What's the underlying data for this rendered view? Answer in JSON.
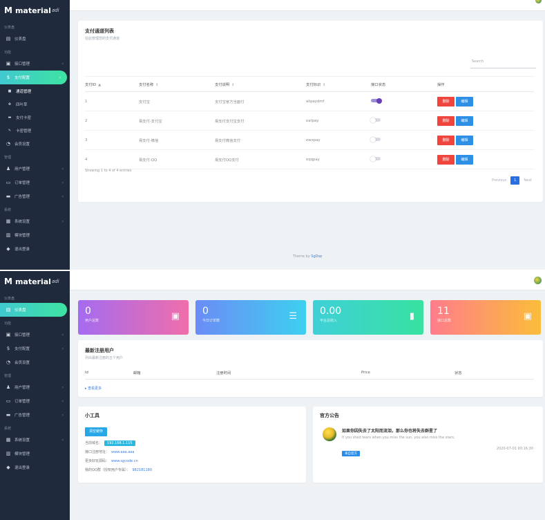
{
  "top": {
    "brand": "material",
    "brand_sub": "adi",
    "sidebar": {
      "sections": [
        {
          "label": "仪表盘",
          "items": [
            {
              "label": "仪表盘",
              "icon": "dashboard-icon"
            }
          ]
        },
        {
          "label": "功能",
          "items": [
            {
              "label": "接口管理",
              "icon": "api-icon",
              "chevron": true
            },
            {
              "label": "支付配置",
              "icon": "dollar-icon",
              "chevron": true,
              "active": true
            },
            {
              "label": "通道管理",
              "icon": "dot-icon",
              "sub": true,
              "bold": true
            },
            {
              "label": "四叶草",
              "icon": "clover-icon",
              "sub": true
            },
            {
              "label": "支付卡密",
              "icon": "card-icon",
              "sub": true
            },
            {
              "label": "卡密管理",
              "icon": "key-icon",
              "sub": true
            },
            {
              "label": "会员设置",
              "icon": "gauge-icon"
            }
          ]
        },
        {
          "label": "管理",
          "items": [
            {
              "label": "用户管理",
              "icon": "users-icon",
              "chevron": true
            },
            {
              "label": "订单管理",
              "icon": "order-icon",
              "chevron": true
            },
            {
              "label": "广告管理",
              "icon": "ad-icon",
              "chevron": true
            }
          ]
        },
        {
          "label": "系统",
          "items": [
            {
              "label": "系统设置",
              "icon": "settings-icon",
              "chevron": true
            },
            {
              "label": "模块管理",
              "icon": "module-icon"
            },
            {
              "label": "退出登录",
              "icon": "logout-icon"
            }
          ]
        }
      ]
    },
    "card": {
      "title": "支付通道列表",
      "subtitle": "在此管理您的支付通道",
      "search_placeholder": "Search",
      "columns": [
        "支付ID",
        "支付名称",
        "支付说明",
        "支付标识",
        "接口状态",
        "操作"
      ],
      "rows": [
        {
          "id": "1",
          "name": "支付宝",
          "desc": "支付宝官方当面付",
          "ident": "alipaydmf",
          "on": true
        },
        {
          "id": "2",
          "name": "易支付-支付宝",
          "desc": "易支付支付宝支付",
          "ident": "eatpay",
          "on": false
        },
        {
          "id": "3",
          "name": "易支付-微信",
          "desc": "易支付微信支付",
          "ident": "ewxpay",
          "on": false
        },
        {
          "id": "4",
          "name": "易支付-QQ",
          "desc": "易支付QQ支付",
          "ident": "eqqpay",
          "on": false
        }
      ],
      "btn_delete": "删除",
      "btn_edit": "编辑",
      "showing": "Showing 1 to 4 of 4 entries",
      "prev": "Previous",
      "page": "1",
      "next": "Next"
    },
    "footer_prefix": "Theme by ",
    "footer_link": "SgDsp"
  },
  "bottom": {
    "brand": "material",
    "brand_sub": "adi",
    "sidebar": {
      "sections": [
        {
          "label": "仪表盘",
          "items": [
            {
              "label": "仪表盘",
              "icon": "dashboard-icon",
              "active": true
            }
          ]
        },
        {
          "label": "功能",
          "items": [
            {
              "label": "接口管理",
              "icon": "api-icon",
              "chevron": true
            },
            {
              "label": "支付配置",
              "icon": "dollar-icon",
              "chevron": true
            },
            {
              "label": "会员设置",
              "icon": "gauge-icon"
            }
          ]
        },
        {
          "label": "管理",
          "items": [
            {
              "label": "用户管理",
              "icon": "users-icon",
              "chevron": true
            },
            {
              "label": "订单管理",
              "icon": "order-icon",
              "chevron": true
            },
            {
              "label": "广告管理",
              "icon": "ad-icon",
              "chevron": true
            }
          ]
        },
        {
          "label": "系统",
          "items": [
            {
              "label": "系统设置",
              "icon": "settings-icon",
              "chevron": true
            },
            {
              "label": "模块管理",
              "icon": "module-icon"
            },
            {
              "label": "退出登录",
              "icon": "logout-icon"
            }
          ]
        }
      ]
    },
    "stats": [
      {
        "value": "0",
        "label": "用户总数",
        "icon": "contact-icon"
      },
      {
        "value": "0",
        "label": "今日订单数",
        "icon": "list-icon"
      },
      {
        "value": "0.00",
        "label": "平台总收入",
        "icon": "chart-icon"
      },
      {
        "value": "11",
        "label": "接口总数",
        "icon": "inbox-icon"
      }
    ],
    "users": {
      "title": "最新注册用户",
      "subtitle": "列出最新注册的五个用户",
      "columns": [
        "Id",
        "邮箱",
        "注册时间",
        "Price",
        "状态"
      ],
      "more": "查看更多"
    },
    "tools": {
      "title": "小工具",
      "cache_button": "清空缓存",
      "domain_label": "当前域名：",
      "domain_value": "192.168.1.115",
      "reg_label": "接口注册地址：",
      "reg_value": "www.aaa.aaa",
      "tutorial_label": "更多好玩源码：",
      "tutorial_value": "www.sgcode.cn",
      "qq_label": "我的QQ群（授权用户专属）：",
      "qq_value": "982181180"
    },
    "notice": {
      "title": "官方公告",
      "head": "如果你因失去了太阳而流泪，那么你也将失去群星了",
      "sub": "If you shed tears when you miss the sun, you also miss the stars.",
      "badge": "来自官方",
      "time": "2020-07-01 00:16:30"
    }
  }
}
